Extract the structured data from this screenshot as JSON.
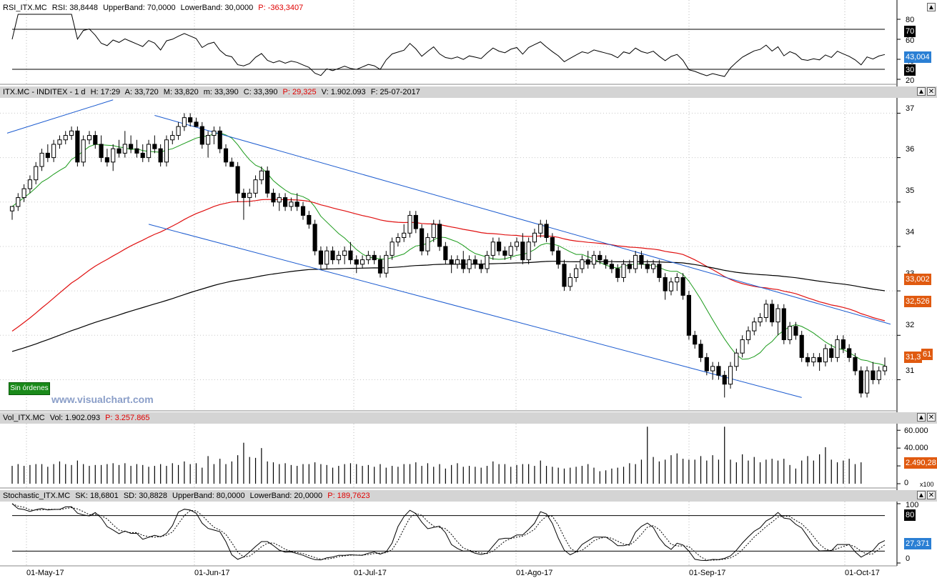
{
  "colors": {
    "candle_up": "#ffffff",
    "candle_down": "#000000",
    "ma_short": "#1a9a1a",
    "ma_mid": "#e01010",
    "ma_long": "#000000",
    "channel": "#1a5acf",
    "badge_blue": "#2a7fd4",
    "badge_red": "#e05a10",
    "badge_black": "#000000",
    "badge_green": "#1a8a1a"
  },
  "panes": {
    "rsi": {
      "header": [
        "RSI_ITX.MC",
        "RSI: 38,8448",
        "UpperBand: 70,0000",
        "LowerBand: 30,0000"
      ],
      "header_red": "P: -363,3407",
      "ticks": [
        "80",
        "60",
        "40",
        "20"
      ],
      "bands": [
        "70",
        "30"
      ],
      "value_badge": "43,004"
    },
    "price": {
      "header": [
        "ITX.MC - INDITEX - 1 d",
        "H: 17:29",
        "A: 33,720",
        "M: 33,820",
        "m: 33,390",
        "C: 33,390"
      ],
      "header_red": "P: 29,325",
      "header_tail": [
        "V: 1.902.093",
        "F: 25-07-2017"
      ],
      "ticks": [
        "37",
        "36",
        "35",
        "34",
        "33",
        "32",
        "31"
      ],
      "badges": [
        "33,002",
        "32,526",
        "31,3",
        "61"
      ],
      "button": "Sin órdenes",
      "watermark": "www.visualchart.com"
    },
    "volume": {
      "header": [
        "Vol_ITX.MC",
        "Vol: 1.902.093"
      ],
      "header_red": "P: 3.257.865",
      "ticks": [
        "60.000",
        "40.000",
        "20.000",
        "0"
      ],
      "value_badge": "2.490,28",
      "multiplier": "x100"
    },
    "stochastic": {
      "header": [
        "Stochastic_ITX.MC",
        "SK: 18,6801",
        "SD: 30,8828",
        "UpperBand: 80,0000",
        "LowerBand: 20,0000"
      ],
      "header_red": "P: 189,7623",
      "ticks": [
        "100",
        "0"
      ],
      "bands": [
        "80"
      ],
      "value_badge": "27,371"
    }
  },
  "x_axis": {
    "labels": [
      "01-May-17",
      "01-Jun-17",
      "01-Jul-17",
      "01-Ago-17",
      "01-Sep-17",
      "01-Oct-17"
    ]
  },
  "chart_data": {
    "type": "candlestick",
    "symbol": "ITX.MC - INDITEX",
    "ylim": [
      30.3,
      37.2
    ],
    "grid": true,
    "candles": [
      [
        34.8,
        34.9,
        34.6,
        34.9
      ],
      [
        34.9,
        35.2,
        34.8,
        35.1
      ],
      [
        35.1,
        35.4,
        35.0,
        35.3
      ],
      [
        35.3,
        35.6,
        35.2,
        35.5
      ],
      [
        35.5,
        35.9,
        35.4,
        35.8
      ],
      [
        35.8,
        36.2,
        35.7,
        36.1
      ],
      [
        36.1,
        36.3,
        35.9,
        36.0
      ],
      [
        36.0,
        36.4,
        35.9,
        36.3
      ],
      [
        36.3,
        36.5,
        36.2,
        36.4
      ],
      [
        36.4,
        36.6,
        36.3,
        36.5
      ],
      [
        36.5,
        36.7,
        36.4,
        36.6
      ],
      [
        36.6,
        36.7,
        35.8,
        35.9
      ],
      [
        35.9,
        36.5,
        35.8,
        36.4
      ],
      [
        36.4,
        36.6,
        36.3,
        36.5
      ],
      [
        36.5,
        36.6,
        36.2,
        36.3
      ],
      [
        36.3,
        36.5,
        35.9,
        36.0
      ],
      [
        36.0,
        36.2,
        35.8,
        35.9
      ],
      [
        35.9,
        36.3,
        35.7,
        36.2
      ],
      [
        36.2,
        36.4,
        36.0,
        36.1
      ],
      [
        36.1,
        36.6,
        36.0,
        36.3
      ],
      [
        36.3,
        36.5,
        36.1,
        36.2
      ],
      [
        36.2,
        36.4,
        36.0,
        36.1
      ],
      [
        36.1,
        36.3,
        35.9,
        36.0
      ],
      [
        36.0,
        36.4,
        35.9,
        36.3
      ],
      [
        36.3,
        36.5,
        36.1,
        36.2
      ],
      [
        36.2,
        36.3,
        35.8,
        35.9
      ],
      [
        35.9,
        36.5,
        35.8,
        36.4
      ],
      [
        36.4,
        36.6,
        36.3,
        36.5
      ],
      [
        36.5,
        36.8,
        36.4,
        36.7
      ],
      [
        36.7,
        37.0,
        36.6,
        36.9
      ],
      [
        36.9,
        37.0,
        36.7,
        36.8
      ],
      [
        36.8,
        36.9,
        36.7,
        36.7
      ],
      [
        36.7,
        36.8,
        36.2,
        36.3
      ],
      [
        36.3,
        36.6,
        36.0,
        36.5
      ],
      [
        36.5,
        36.7,
        36.3,
        36.6
      ],
      [
        36.6,
        36.7,
        36.1,
        36.2
      ],
      [
        36.2,
        36.3,
        35.8,
        35.9
      ],
      [
        35.9,
        36.0,
        35.8,
        35.8
      ],
      [
        35.8,
        35.9,
        35.0,
        35.2
      ],
      [
        35.2,
        35.3,
        34.6,
        35.1
      ],
      [
        35.1,
        35.3,
        34.9,
        35.2
      ],
      [
        35.2,
        35.6,
        35.1,
        35.5
      ],
      [
        35.5,
        35.8,
        35.4,
        35.7
      ],
      [
        35.7,
        35.8,
        35.1,
        35.2
      ],
      [
        35.2,
        35.3,
        34.9,
        35.0
      ],
      [
        35.0,
        35.2,
        34.8,
        35.1
      ],
      [
        35.1,
        35.2,
        34.8,
        34.9
      ],
      [
        34.9,
        35.1,
        34.8,
        35.0
      ],
      [
        35.0,
        35.2,
        34.8,
        34.9
      ],
      [
        34.9,
        35.0,
        34.6,
        34.7
      ],
      [
        34.7,
        34.8,
        34.4,
        34.5
      ],
      [
        34.5,
        34.6,
        33.8,
        33.9
      ],
      [
        33.9,
        34.0,
        33.5,
        33.6
      ],
      [
        33.6,
        34.0,
        33.5,
        33.9
      ],
      [
        33.9,
        34.0,
        33.6,
        33.7
      ],
      [
        33.7,
        33.9,
        33.6,
        33.8
      ],
      [
        33.8,
        34.0,
        33.6,
        33.9
      ],
      [
        33.9,
        34.1,
        33.6,
        33.7
      ],
      [
        33.7,
        33.8,
        33.4,
        33.6
      ],
      [
        33.6,
        33.8,
        33.5,
        33.7
      ],
      [
        33.7,
        33.9,
        33.6,
        33.8
      ],
      [
        33.8,
        33.9,
        33.6,
        33.7
      ],
      [
        33.7,
        33.8,
        33.3,
        33.4
      ],
      [
        33.4,
        33.9,
        33.3,
        33.8
      ],
      [
        33.8,
        34.2,
        33.7,
        34.1
      ],
      [
        34.1,
        34.3,
        34.0,
        34.2
      ],
      [
        34.2,
        34.5,
        34.1,
        34.3
      ],
      [
        34.3,
        34.8,
        34.2,
        34.7
      ],
      [
        34.7,
        34.8,
        34.3,
        34.4
      ],
      [
        34.4,
        34.5,
        33.8,
        33.9
      ],
      [
        33.9,
        34.3,
        33.8,
        34.2
      ],
      [
        34.2,
        34.6,
        34.1,
        34.5
      ],
      [
        34.5,
        34.6,
        33.9,
        34.0
      ],
      [
        34.0,
        34.1,
        33.6,
        33.7
      ],
      [
        33.7,
        33.8,
        33.4,
        33.6
      ],
      [
        33.6,
        33.8,
        33.5,
        33.7
      ],
      [
        33.7,
        33.9,
        33.4,
        33.5
      ],
      [
        33.5,
        33.8,
        33.4,
        33.7
      ],
      [
        33.7,
        33.8,
        33.5,
        33.6
      ],
      [
        33.6,
        33.7,
        33.4,
        33.5
      ],
      [
        33.5,
        33.9,
        33.4,
        33.8
      ],
      [
        33.8,
        34.2,
        33.7,
        34.1
      ],
      [
        34.1,
        34.2,
        33.8,
        33.9
      ],
      [
        33.9,
        34.0,
        33.7,
        33.8
      ],
      [
        33.8,
        34.1,
        33.7,
        34.0
      ],
      [
        34.0,
        34.2,
        33.9,
        34.1
      ],
      [
        34.1,
        34.3,
        33.6,
        33.7
      ],
      [
        33.7,
        34.2,
        33.6,
        34.1
      ],
      [
        34.1,
        34.4,
        34.0,
        34.3
      ],
      [
        34.3,
        34.6,
        34.2,
        34.5
      ],
      [
        34.5,
        34.6,
        34.1,
        34.2
      ],
      [
        34.2,
        34.3,
        33.8,
        33.9
      ],
      [
        33.9,
        34.0,
        33.5,
        33.6
      ],
      [
        33.6,
        33.7,
        33.0,
        33.1
      ],
      [
        33.1,
        33.4,
        33.0,
        33.3
      ],
      [
        33.3,
        33.6,
        33.2,
        33.5
      ],
      [
        33.5,
        33.8,
        33.4,
        33.7
      ],
      [
        33.7,
        33.9,
        33.5,
        33.6
      ],
      [
        33.6,
        33.9,
        33.5,
        33.8
      ],
      [
        33.8,
        33.9,
        33.6,
        33.7
      ],
      [
        33.7,
        33.8,
        33.5,
        33.6
      ],
      [
        33.6,
        33.7,
        33.4,
        33.5
      ],
      [
        33.5,
        33.6,
        33.2,
        33.3
      ],
      [
        33.3,
        33.7,
        33.2,
        33.6
      ],
      [
        33.6,
        33.7,
        33.4,
        33.5
      ],
      [
        33.5,
        33.9,
        33.4,
        33.8
      ],
      [
        33.8,
        33.9,
        33.5,
        33.6
      ],
      [
        33.6,
        33.7,
        33.4,
        33.5
      ],
      [
        33.5,
        33.7,
        33.4,
        33.6
      ],
      [
        33.6,
        33.7,
        33.2,
        33.3
      ],
      [
        33.3,
        33.4,
        32.8,
        33.0
      ],
      [
        33.0,
        33.3,
        32.9,
        33.2
      ],
      [
        33.2,
        33.4,
        33.0,
        33.3
      ],
      [
        33.3,
        33.4,
        32.8,
        32.9
      ],
      [
        32.9,
        33.0,
        31.9,
        32.0
      ],
      [
        32.0,
        32.1,
        31.7,
        31.8
      ],
      [
        31.8,
        31.9,
        31.4,
        31.5
      ],
      [
        31.5,
        31.6,
        31.1,
        31.2
      ],
      [
        31.2,
        31.4,
        31.0,
        31.3
      ],
      [
        31.3,
        31.4,
        31.0,
        31.1
      ],
      [
        31.1,
        31.2,
        30.6,
        30.9
      ],
      [
        30.9,
        31.4,
        30.8,
        31.3
      ],
      [
        31.3,
        31.7,
        31.2,
        31.6
      ],
      [
        31.6,
        32.0,
        31.5,
        31.9
      ],
      [
        31.9,
        32.2,
        31.8,
        32.1
      ],
      [
        32.1,
        32.4,
        32.0,
        32.3
      ],
      [
        32.3,
        32.5,
        32.2,
        32.4
      ],
      [
        32.4,
        32.8,
        32.3,
        32.7
      ],
      [
        32.7,
        32.8,
        32.2,
        32.3
      ],
      [
        32.3,
        32.7,
        32.0,
        32.6
      ],
      [
        32.6,
        32.7,
        31.8,
        31.9
      ],
      [
        31.9,
        32.3,
        31.8,
        32.2
      ],
      [
        32.2,
        32.3,
        31.9,
        32.0
      ],
      [
        32.0,
        32.1,
        31.4,
        31.5
      ],
      [
        31.5,
        31.6,
        31.3,
        31.4
      ],
      [
        31.4,
        31.6,
        31.3,
        31.5
      ],
      [
        31.5,
        31.6,
        31.2,
        31.4
      ],
      [
        31.4,
        31.8,
        31.3,
        31.7
      ],
      [
        31.7,
        31.8,
        31.4,
        31.5
      ],
      [
        31.5,
        32.0,
        31.4,
        31.9
      ],
      [
        31.9,
        32.0,
        31.6,
        31.7
      ],
      [
        31.7,
        31.8,
        31.4,
        31.5
      ],
      [
        31.5,
        31.6,
        31.1,
        31.2
      ],
      [
        31.2,
        31.3,
        30.6,
        30.7
      ],
      [
        30.7,
        31.3,
        30.6,
        31.2
      ],
      [
        31.2,
        31.4,
        30.9,
        31.0
      ],
      [
        31.0,
        31.3,
        30.9,
        31.2
      ],
      [
        31.2,
        31.5,
        31.1,
        31.3
      ]
    ],
    "volumes": [
      20,
      22,
      20,
      21,
      22,
      22,
      19,
      22,
      25,
      22,
      21,
      26,
      22,
      20,
      21,
      21,
      22,
      23,
      21,
      23,
      20,
      22,
      21,
      19,
      20,
      22,
      20,
      23,
      21,
      25,
      22,
      23,
      18,
      31,
      22,
      28,
      22,
      25,
      32,
      46,
      30,
      29,
      40,
      25,
      24,
      22,
      23,
      21,
      20,
      22,
      22,
      24,
      22,
      21,
      18,
      20,
      22,
      23,
      22,
      20,
      21,
      19,
      22,
      18,
      20,
      19,
      22,
      22,
      24,
      20,
      23,
      19,
      22,
      17,
      21,
      23,
      19,
      20,
      19,
      18,
      20,
      25,
      22,
      22,
      19,
      21,
      22,
      22,
      20,
      26,
      20,
      19,
      18,
      17,
      18,
      19,
      20,
      22,
      18,
      14,
      15,
      17,
      18,
      19,
      23,
      22,
      27,
      64,
      30,
      25,
      27,
      32,
      34,
      28,
      27,
      27,
      31,
      26,
      32,
      27,
      64,
      27,
      24,
      33,
      26,
      30,
      24,
      27,
      28,
      26,
      28,
      21,
      17,
      26,
      31,
      26,
      33,
      41,
      27,
      24,
      26,
      28,
      22,
      24
    ],
    "levels": {
      "ma_long_last": 33.002,
      "ma_mid_last": 32.526
    }
  }
}
